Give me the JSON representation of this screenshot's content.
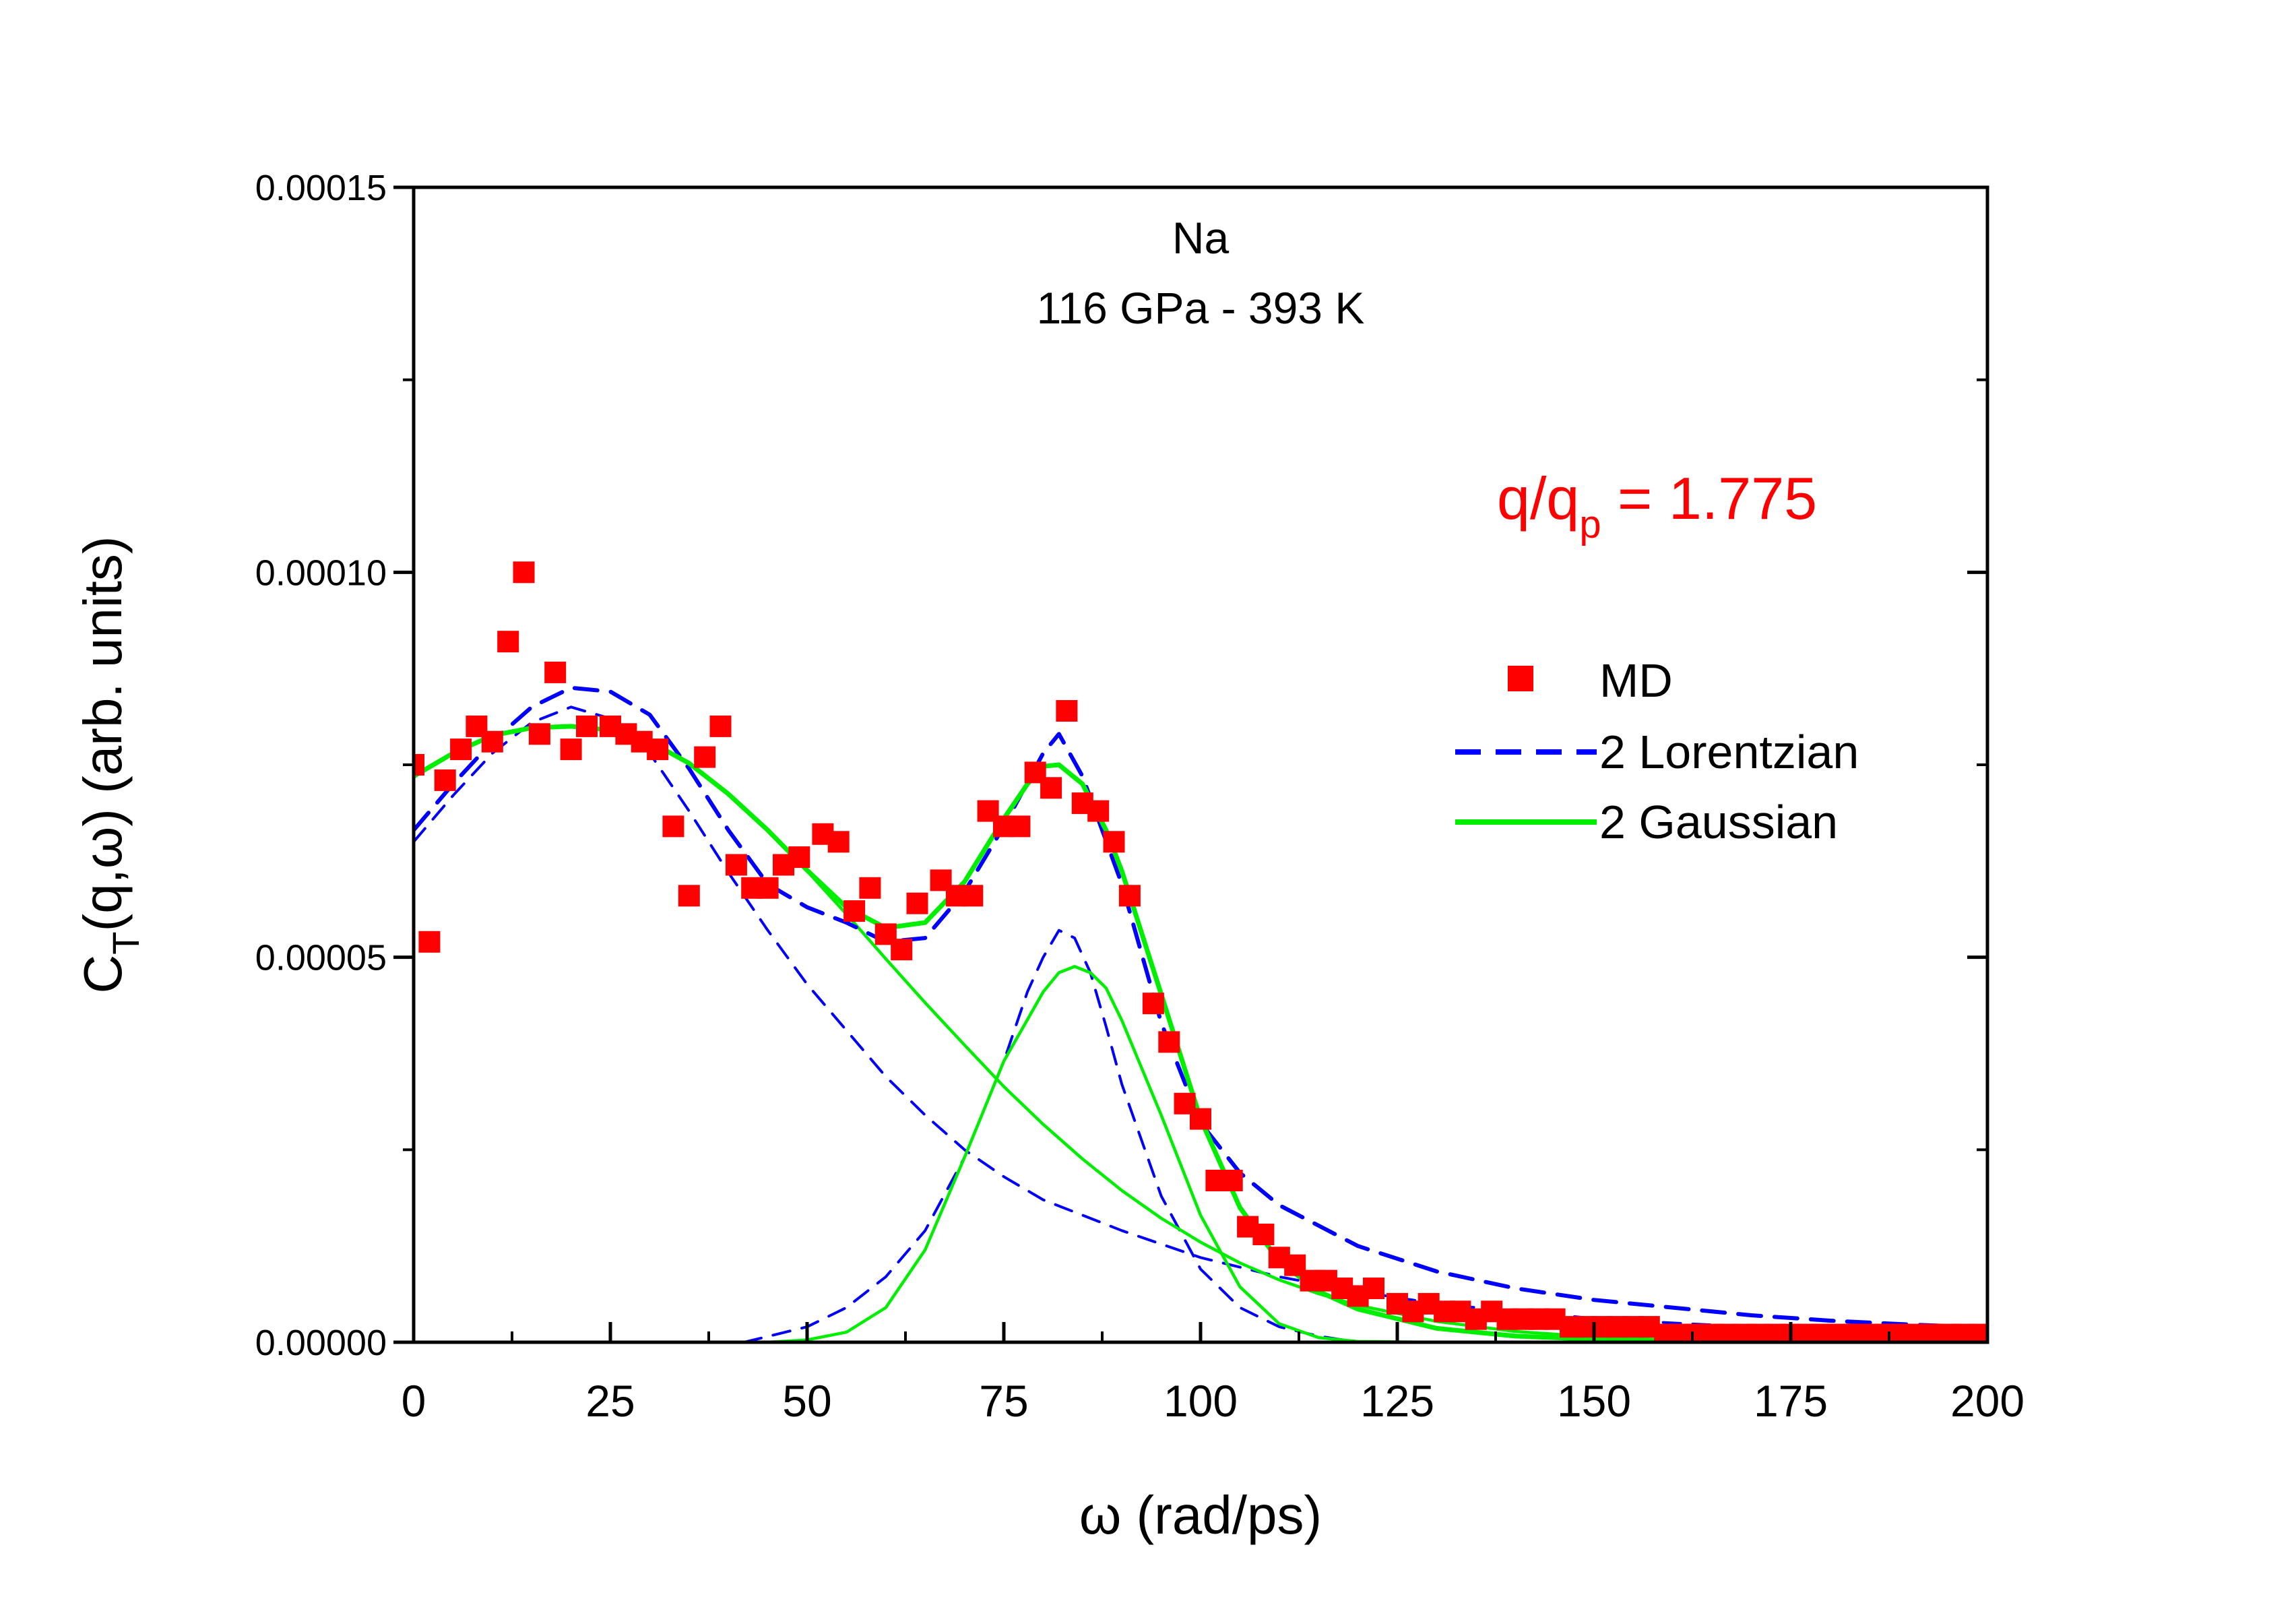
{
  "chart_data": {
    "type": "scatter",
    "title_lines": [
      "Na",
      "116 GPa - 393 K"
    ],
    "annotation": {
      "text": "q/q",
      "sub": "p",
      "rest": " = 1.775",
      "color": "#ff0000"
    },
    "xlabel": "ω (rad/ps)",
    "ylabel": {
      "main": "C",
      "sub": "T",
      "rest": "(q,ω) (arb. units)"
    },
    "xlim": [
      0,
      200
    ],
    "ylim": [
      0,
      0.00015
    ],
    "xticks": [
      0,
      25,
      50,
      75,
      100,
      125,
      150,
      175,
      200
    ],
    "xtick_labels": [
      "0",
      "25",
      "50",
      "75",
      "100",
      "125",
      "150",
      "175",
      "200"
    ],
    "yticks": [
      0,
      5e-05,
      0.0001,
      0.00015
    ],
    "ytick_labels": [
      "0.00000",
      "0.00005",
      "0.00010",
      "0.00015"
    ],
    "legend": {
      "position": "right",
      "items": [
        {
          "label": "MD",
          "style": "square",
          "color": "#ff0000"
        },
        {
          "label": "2 Lorentzian",
          "style": "dashed",
          "color": "#0000ff"
        },
        {
          "label": "2 Gaussian",
          "style": "solid",
          "color": "#00ee00"
        }
      ]
    },
    "series": [
      {
        "name": "MD",
        "style": "square",
        "color": "#ff0000",
        "x": [
          0,
          2,
          4,
          6,
          8,
          10,
          12,
          14,
          16,
          18,
          20,
          22,
          25,
          27,
          29,
          31,
          33,
          35,
          37,
          39,
          41,
          43,
          45,
          47,
          49,
          52,
          54,
          56,
          58,
          60,
          62,
          64,
          67,
          69,
          71,
          73,
          75,
          77,
          79,
          81,
          83,
          85,
          87,
          89,
          91,
          94,
          96,
          98,
          100,
          102,
          104,
          106,
          108,
          110,
          112,
          114,
          116,
          118,
          120,
          122,
          125,
          127,
          129,
          131,
          133,
          135,
          137,
          139,
          141,
          143,
          145,
          147,
          149,
          151,
          153,
          155,
          157,
          159,
          161,
          163,
          165,
          167,
          169,
          171,
          173,
          175,
          177,
          179,
          181,
          183,
          185,
          187,
          189,
          191,
          193,
          195,
          197,
          199
        ],
        "y": [
          7.5e-05,
          5.2e-05,
          7.3e-05,
          7.7e-05,
          8e-05,
          7.8e-05,
          9.1e-05,
          0.0001,
          7.9e-05,
          8.7e-05,
          7.7e-05,
          8e-05,
          8e-05,
          7.9e-05,
          7.8e-05,
          7.7e-05,
          6.7e-05,
          5.8e-05,
          7.6e-05,
          8e-05,
          6.2e-05,
          5.9e-05,
          5.9e-05,
          6.2e-05,
          6.3e-05,
          6.6e-05,
          6.5e-05,
          5.6e-05,
          5.9e-05,
          5.3e-05,
          5.1e-05,
          5.7e-05,
          6e-05,
          5.8e-05,
          5.8e-05,
          6.9e-05,
          6.7e-05,
          6.7e-05,
          7.4e-05,
          7.2e-05,
          8.2e-05,
          7e-05,
          6.9e-05,
          6.5e-05,
          5.8e-05,
          4.4e-05,
          3.9e-05,
          3.1e-05,
          2.9e-05,
          2.1e-05,
          2.1e-05,
          1.5e-05,
          1.4e-05,
          1.1e-05,
          1e-05,
          8e-06,
          8e-06,
          7e-06,
          6e-06,
          7e-06,
          5e-06,
          4e-06,
          5e-06,
          4e-06,
          4e-06,
          3e-06,
          4e-06,
          3e-06,
          3e-06,
          3e-06,
          3e-06,
          2e-06,
          2e-06,
          2e-06,
          2e-06,
          2e-06,
          2e-06,
          1e-06,
          1e-06,
          1e-06,
          1e-06,
          1e-06,
          1e-06,
          1e-06,
          1e-06,
          1e-06,
          1e-06,
          1e-06,
          1e-06,
          1e-06,
          1e-06,
          1e-06,
          1e-06,
          1e-06,
          1e-06,
          1e-06,
          1e-06,
          1e-06
        ]
      },
      {
        "name": "2 Lorentzian",
        "style": "dashed-thick",
        "color": "#0000ff",
        "x": [
          0,
          5,
          10,
          15,
          20,
          25,
          30,
          35,
          40,
          45,
          50,
          55,
          60,
          65,
          70,
          75,
          80,
          82,
          85,
          90,
          95,
          100,
          105,
          110,
          120,
          130,
          140,
          150,
          160,
          170,
          180,
          190,
          200
        ],
        "y": [
          6.65e-05,
          7.25e-05,
          7.8e-05,
          8.25e-05,
          8.5e-05,
          8.45e-05,
          8.15e-05,
          7.45e-05,
          6.65e-05,
          5.95e-05,
          5.65e-05,
          5.45e-05,
          5.2e-05,
          5.25e-05,
          5.85e-05,
          6.7e-05,
          7.65e-05,
          7.9e-05,
          7.35e-05,
          5.95e-05,
          4.15e-05,
          2.85e-05,
          2.2e-05,
          1.78e-05,
          1.25e-05,
          9.2e-06,
          7e-06,
          5.5e-06,
          4.5e-06,
          3.5e-06,
          2.8e-06,
          2.3e-06,
          1.9e-06
        ]
      },
      {
        "name": "Lorentzian component 1",
        "style": "dashed-thin",
        "color": "#0000ff",
        "x": [
          0,
          5,
          10,
          15,
          20,
          25,
          30,
          35,
          40,
          45,
          50,
          55,
          60,
          65,
          70,
          75,
          80,
          90,
          100,
          110,
          120,
          130,
          140,
          150,
          160,
          170,
          180,
          190,
          200
        ],
        "y": [
          6.5e-05,
          7.1e-05,
          7.65e-05,
          8.05e-05,
          8.25e-05,
          8.1e-05,
          7.65e-05,
          6.9e-05,
          6.1e-05,
          5.35e-05,
          4.65e-05,
          4.05e-05,
          3.45e-05,
          2.95e-05,
          2.5e-05,
          2.15e-05,
          1.85e-05,
          1.45e-05,
          1.1e-05,
          8.5e-06,
          6.6e-06,
          5e-06,
          4e-06,
          3.1e-06,
          2.5e-06,
          2e-06,
          1.6e-06,
          1.3e-06,
          1.1e-06
        ]
      },
      {
        "name": "Lorentzian component 2",
        "style": "dashed-thin",
        "color": "#0000ff",
        "x": [
          42,
          50,
          55,
          60,
          65,
          70,
          75,
          78,
          80,
          82,
          84,
          86,
          88,
          90,
          95,
          100,
          105,
          110,
          115,
          120
        ],
        "y": [
          0,
          2e-06,
          4.5e-06,
          8.5e-06,
          1.45e-05,
          2.4e-05,
          3.65e-05,
          4.55e-05,
          5e-05,
          5.35e-05,
          5.25e-05,
          4.8e-05,
          4.1e-05,
          3.35e-05,
          1.9e-05,
          9.5e-06,
          4.5e-06,
          2e-06,
          8e-07,
          0
        ]
      },
      {
        "name": "2 Gaussian",
        "style": "solid-thick",
        "color": "#00ee00",
        "x": [
          0,
          5,
          10,
          15,
          20,
          25,
          30,
          35,
          40,
          45,
          50,
          55,
          60,
          65,
          70,
          75,
          78,
          80,
          82,
          85,
          88,
          90,
          95,
          100,
          105,
          110,
          115,
          120,
          130,
          140,
          150,
          160,
          170,
          180,
          200
        ],
        "y": [
          7.35e-05,
          7.65e-05,
          7.88e-05,
          7.98e-05,
          8e-05,
          7.95e-05,
          7.8e-05,
          7.52e-05,
          7.12e-05,
          6.65e-05,
          6.13e-05,
          5.65e-05,
          5.38e-05,
          5.45e-05,
          5.98e-05,
          6.8e-05,
          7.25e-05,
          7.48e-05,
          7.5e-05,
          7.25e-05,
          6.65e-05,
          6.12e-05,
          4.52e-05,
          2.9e-05,
          1.75e-05,
          1.05e-05,
          6.6e-06,
          4.3e-06,
          1.8e-06,
          8e-07,
          4e-07,
          2e-07,
          1e-07,
          0,
          0
        ]
      },
      {
        "name": "Gaussian component 1",
        "style": "solid-thin",
        "color": "#00ee00",
        "x": [
          0,
          5,
          10,
          15,
          20,
          25,
          30,
          35,
          40,
          45,
          50,
          55,
          60,
          65,
          70,
          75,
          80,
          85,
          90,
          95,
          100,
          105,
          110,
          115,
          120,
          130,
          140,
          150,
          160,
          180,
          200
        ],
        "y": [
          7.35e-05,
          7.65e-05,
          7.88e-05,
          7.98e-05,
          8e-05,
          7.95e-05,
          7.8e-05,
          7.52e-05,
          7.12e-05,
          6.65e-05,
          6.12e-05,
          5.56e-05,
          4.98e-05,
          4.41e-05,
          3.86e-05,
          3.32e-05,
          2.83e-05,
          2.38e-05,
          1.97e-05,
          1.61e-05,
          1.3e-05,
          1.03e-05,
          8.1e-06,
          6.3e-06,
          4.8e-06,
          2.7e-06,
          1.4e-06,
          7e-07,
          3e-07,
          1e-07,
          0
        ]
      },
      {
        "name": "Gaussian component 2",
        "style": "solid-thin",
        "color": "#00ee00",
        "x": [
          0,
          45,
          50,
          55,
          60,
          65,
          70,
          75,
          80,
          82,
          84,
          86,
          88,
          90,
          95,
          100,
          105,
          110,
          115,
          120,
          130,
          200
        ],
        "y": [
          0,
          0,
          3e-07,
          1.3e-06,
          4.5e-06,
          1.2e-05,
          2.4e-05,
          3.65e-05,
          4.55e-05,
          4.8e-05,
          4.88e-05,
          4.8e-05,
          4.6e-05,
          4.18e-05,
          2.95e-05,
          1.65e-05,
          7.2e-06,
          2.4e-06,
          6e-07,
          1e-07,
          0,
          0
        ]
      }
    ]
  }
}
